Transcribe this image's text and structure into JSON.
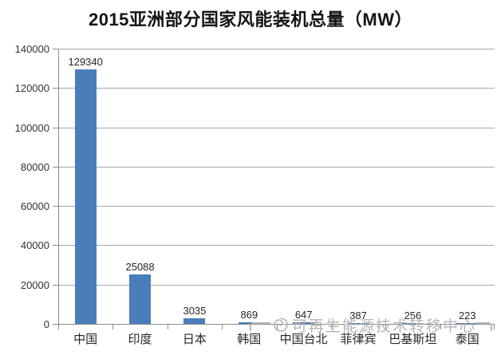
{
  "title": "2015亚洲部分国家风能装机总量（MW）",
  "watermark": {
    "text": "可再生能源技术转移中心",
    "logo_icon": "swirl-logo-icon",
    "color": "#b5b5b5"
  },
  "colors": {
    "bar": "#4a7ebb",
    "gridline": "#a6a6a6",
    "axis": "#8c8c8c",
    "label_text": "#262626",
    "ytick_text": "#333333",
    "title_text": "#141414",
    "background": "#ffffff"
  },
  "chart_data": {
    "type": "bar",
    "title": "2015亚洲部分国家风能装机总量（MW）",
    "categories": [
      "中国",
      "印度",
      "日本",
      "韩国",
      "中国台北",
      "菲律宾",
      "巴基斯坦",
      "泰国"
    ],
    "values": [
      129340,
      25088,
      3035,
      869,
      647,
      387,
      256,
      223
    ],
    "value_labels": [
      "129340",
      "25088",
      "3035",
      "869",
      "647",
      "387",
      "256",
      "223"
    ],
    "xlabel": "",
    "ylabel": "",
    "ylim": [
      0,
      140000
    ],
    "yticks": [
      0,
      20000,
      40000,
      60000,
      80000,
      100000,
      120000,
      140000
    ],
    "ytick_labels": [
      "0",
      "20000",
      "40000",
      "60000",
      "80000",
      "100000",
      "120000",
      "140000"
    ],
    "grid": true,
    "legend": false,
    "bar_color": "#4a7ebb"
  }
}
